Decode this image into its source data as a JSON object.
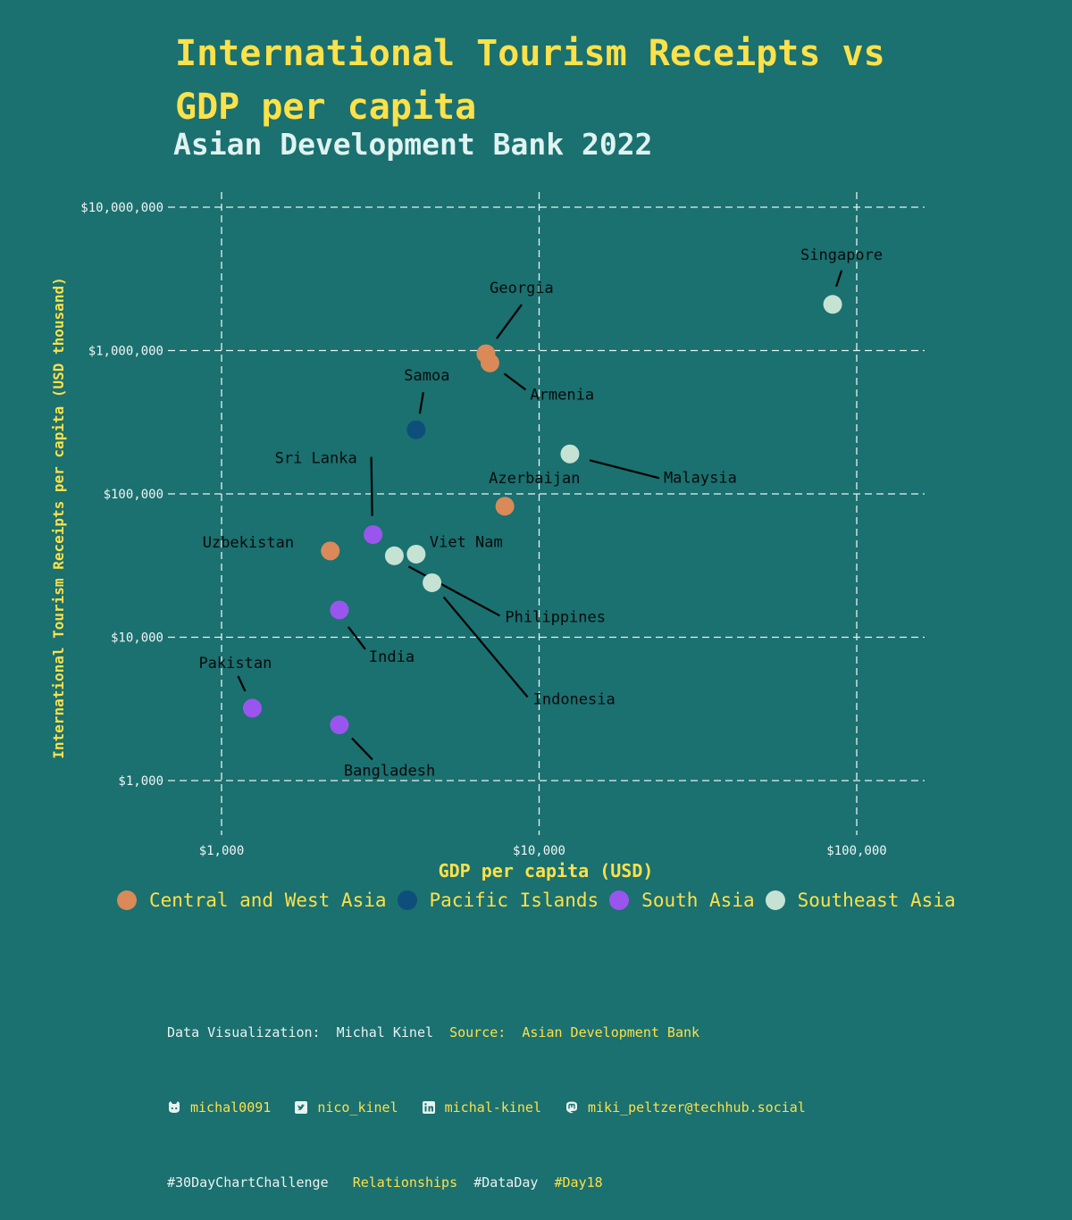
{
  "title_line1": "International Tourism Receipts vs",
  "title_line2": "GDP per capita",
  "subtitle": "Asian Development Bank 2022",
  "colors": {
    "background": "#1b7070",
    "title": "#fbe14a",
    "subtitle": "#dff3f0",
    "grid": "#e8f2f0",
    "Central and West Asia": "#d98a58",
    "Pacific Islands": "#0d4f7a",
    "South Asia": "#9a55ee",
    "Southeast Asia": "#c5e2d3"
  },
  "chart_data": {
    "type": "scatter",
    "xlabel": "GDP per capita (USD)",
    "ylabel": "International Tourism Receipts per capita (USD thousand)",
    "xscale": "log",
    "yscale": "log",
    "xlim": [
      550,
      160000
    ],
    "ylim": [
      400,
      15000000
    ],
    "x_ticks": [
      1000,
      10000,
      100000
    ],
    "x_tick_labels": [
      "$1,000",
      "$10,000",
      "$100,000"
    ],
    "y_ticks": [
      1000,
      10000,
      100000,
      1000000,
      10000000
    ],
    "y_tick_labels": [
      "$1,000",
      "$10,000",
      "$100,000",
      "$1,000,000",
      "$10,000,000"
    ],
    "grid": true,
    "legend_position": "bottom",
    "groups": [
      "Central and West Asia",
      "Pacific Islands",
      "South Asia",
      "Southeast Asia"
    ],
    "points": [
      {
        "name": "Singapore",
        "group": "Southeast Asia",
        "x": 84000,
        "y": 2100000
      },
      {
        "name": "Georgia",
        "group": "Central and West Asia",
        "x": 6800,
        "y": 950000
      },
      {
        "name": "Armenia",
        "group": "Central and West Asia",
        "x": 7000,
        "y": 820000
      },
      {
        "name": "Samoa",
        "group": "Pacific Islands",
        "x": 4100,
        "y": 280000
      },
      {
        "name": "Malaysia",
        "group": "Southeast Asia",
        "x": 12500,
        "y": 190000
      },
      {
        "name": "Azerbaijan",
        "group": "Central and West Asia",
        "x": 7800,
        "y": 82000
      },
      {
        "name": "Sri Lanka",
        "group": "South Asia",
        "x": 3000,
        "y": 52000
      },
      {
        "name": "Uzbekistan",
        "group": "Central and West Asia",
        "x": 2200,
        "y": 40000
      },
      {
        "name": "Viet Nam",
        "group": "Southeast Asia",
        "x": 4100,
        "y": 38000
      },
      {
        "name": "Philippines",
        "group": "Southeast Asia",
        "x": 3500,
        "y": 37000
      },
      {
        "name": "Indonesia",
        "group": "Southeast Asia",
        "x": 4600,
        "y": 24000
      },
      {
        "name": "India",
        "group": "South Asia",
        "x": 2350,
        "y": 15500
      },
      {
        "name": "Pakistan",
        "group": "South Asia",
        "x": 1250,
        "y": 3200
      },
      {
        "name": "Bangladesh",
        "group": "South Asia",
        "x": 2350,
        "y": 2450
      }
    ]
  },
  "legend": [
    {
      "label": "Central and West Asia",
      "color": "#d98a58"
    },
    {
      "label": "Pacific Islands",
      "color": "#0d4f7a"
    },
    {
      "label": "South Asia",
      "color": "#9a55ee"
    },
    {
      "label": "Southeast Asia",
      "color": "#c5e2d3"
    }
  ],
  "caption": {
    "viz_label": "Data Visualization:",
    "author": "Michal Kinel",
    "source_label": "Source:",
    "source": "Asian Development Bank",
    "github": "michal0091",
    "twitter": "nico_kinel",
    "linkedin": "michal-kinel",
    "mastodon": "miki_peltzer@techhub.social",
    "tag1": "#30DayChartChallenge",
    "tag2": "Relationships",
    "tag3": "#DataDay",
    "tag4": "#Day18"
  }
}
